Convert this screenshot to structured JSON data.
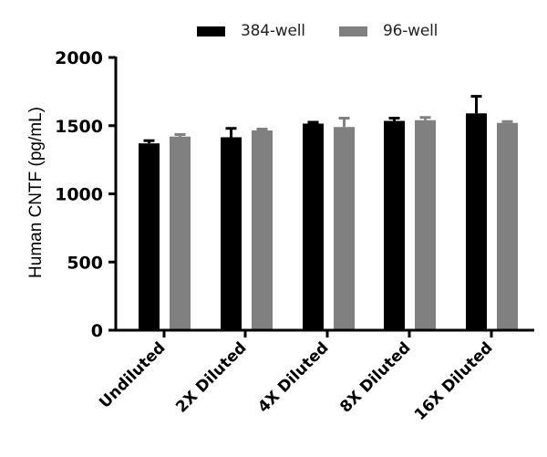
{
  "legend": {
    "items": [
      {
        "label": "384-well",
        "color": "#000000"
      },
      {
        "label": "96-well",
        "color": "#808080"
      }
    ]
  },
  "axes": {
    "ylabel": "Human CNTF (pg/mL)",
    "yticks": [
      "0",
      "500",
      "1000",
      "1500",
      "2000"
    ]
  },
  "chart_data": {
    "type": "bar",
    "title": "",
    "xlabel": "",
    "ylabel": "Human CNTF (pg/mL)",
    "ylim": [
      0,
      2000
    ],
    "yticks": [
      0,
      500,
      1000,
      1500,
      2000
    ],
    "grid": false,
    "legend_position": "top",
    "categories": [
      "Undiluted",
      "2X Diluted",
      "4X Diluted",
      "8X Diluted",
      "16X Diluted"
    ],
    "series": [
      {
        "name": "384-well",
        "color": "#000000",
        "values": [
          1370,
          1415,
          1515,
          1535,
          1590
        ],
        "error": [
          20,
          65,
          10,
          20,
          125
        ]
      },
      {
        "name": "96-well",
        "color": "#808080",
        "values": [
          1420,
          1465,
          1490,
          1540,
          1520
        ],
        "error": [
          15,
          10,
          65,
          20,
          10
        ]
      }
    ]
  }
}
